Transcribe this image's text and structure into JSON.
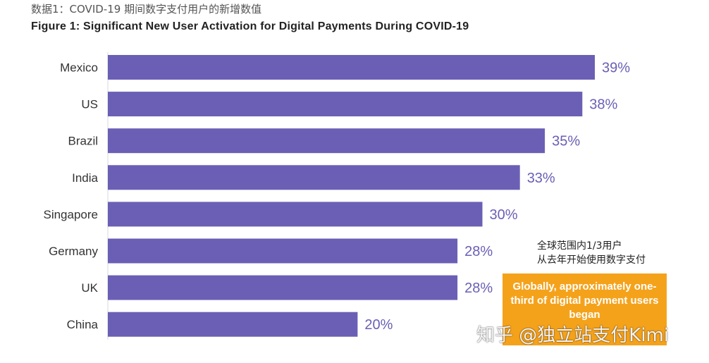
{
  "caption_cn": "数据1：COVID-19 期间数字支付用户的新增数值",
  "chart_data": {
    "type": "bar",
    "orientation": "horizontal",
    "title": "Figure 1: Significant New User Activation for Digital Payments During COVID-19",
    "categories": [
      "Mexico",
      "US",
      "Brazil",
      "India",
      "Singapore",
      "Germany",
      "UK",
      "China"
    ],
    "values": [
      39,
      38,
      35,
      33,
      30,
      28,
      28,
      20
    ],
    "value_labels": [
      "39%",
      "38%",
      "35%",
      "33%",
      "30%",
      "28%",
      "28%",
      "20%"
    ],
    "unit": "%",
    "xlim": [
      0,
      39
    ],
    "grid": false,
    "legend": "none",
    "bar_color": "#6a5fb5",
    "label_color": "#6a5fb5"
  },
  "annotation": {
    "note_cn_line1": "全球范围内1/3用户",
    "note_cn_line2": "从去年开始使用数字支付",
    "box_text": "Globally, approximately one-third of digital payment users began",
    "box_color": "#f5a21b"
  },
  "watermark": "知乎 @独立站支付Kimi"
}
